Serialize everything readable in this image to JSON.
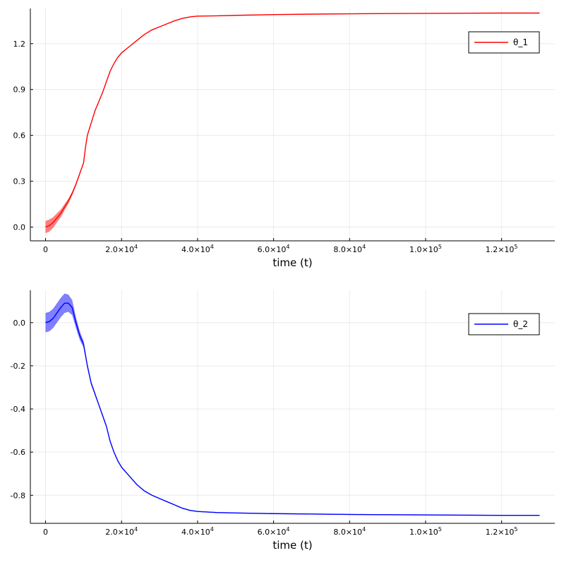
{
  "colors": {
    "series1": "#ff0000",
    "series2": "#0000ff",
    "grid": "#ebebeb",
    "axis": "#000000"
  },
  "chart_data": [
    {
      "type": "line",
      "xlabel": "time (t)",
      "ylabel": "",
      "xlim": [
        -4000,
        134000
      ],
      "ylim": [
        -0.09,
        1.43
      ],
      "grid": true,
      "legend_position": "top-right",
      "xticks": [
        {
          "value": 0,
          "label": "0",
          "mant": "",
          "exp": ""
        },
        {
          "value": 20000,
          "label": "",
          "mant": "2.0×10",
          "exp": "4"
        },
        {
          "value": 40000,
          "label": "",
          "mant": "4.0×10",
          "exp": "4"
        },
        {
          "value": 60000,
          "label": "",
          "mant": "6.0×10",
          "exp": "4"
        },
        {
          "value": 80000,
          "label": "",
          "mant": "8.0×10",
          "exp": "4"
        },
        {
          "value": 100000,
          "label": "",
          "mant": "1.0×10",
          "exp": "5"
        },
        {
          "value": 120000,
          "label": "",
          "mant": "1.2×10",
          "exp": "5"
        }
      ],
      "yticks": [
        {
          "value": 0,
          "label": "0.0"
        },
        {
          "value": 0.3,
          "label": "0.3"
        },
        {
          "value": 0.6,
          "label": "0.6"
        },
        {
          "value": 0.9,
          "label": "0.9"
        },
        {
          "value": 1.2,
          "label": "1.2"
        }
      ],
      "series": [
        {
          "name": "θ_1",
          "color": "#ff0000",
          "band": true,
          "x": [
            0,
            1000,
            2000,
            3000,
            4000,
            5000,
            6000,
            7000,
            8000,
            9000,
            10000,
            10500,
            11000,
            12000,
            13000,
            14000,
            15000,
            16000,
            17000,
            18000,
            19000,
            20000,
            22000,
            24000,
            26000,
            28000,
            30000,
            32000,
            34000,
            36000,
            38000,
            40000,
            45000,
            50000,
            60000,
            70000,
            80000,
            90000,
            100000,
            110000,
            120000,
            130000
          ],
          "y": [
            0.0,
            0.01,
            0.03,
            0.06,
            0.09,
            0.13,
            0.17,
            0.22,
            0.28,
            0.35,
            0.42,
            0.52,
            0.6,
            0.68,
            0.76,
            0.82,
            0.88,
            0.95,
            1.02,
            1.07,
            1.11,
            1.14,
            1.18,
            1.22,
            1.26,
            1.29,
            1.31,
            1.33,
            1.35,
            1.365,
            1.375,
            1.38,
            1.382,
            1.385,
            1.39,
            1.393,
            1.395,
            1.397,
            1.398,
            1.399,
            1.4,
            1.4
          ],
          "band_halfwidth": [
            0.04,
            0.04,
            0.035,
            0.03,
            0.025,
            0.02,
            0.016,
            0.012,
            0.01,
            0.008,
            0.006,
            0.006,
            0.005,
            0.005,
            0.004,
            0.004,
            0.004,
            0.003,
            0.003,
            0.003,
            0.003,
            0.003,
            0.002,
            0.002,
            0.002,
            0.002,
            0.002,
            0.002,
            0.002,
            0.002,
            0.002,
            0.002,
            0.002,
            0.002,
            0.002,
            0.002,
            0.002,
            0.002,
            0.002,
            0.002,
            0.002,
            0.002
          ]
        }
      ]
    },
    {
      "type": "line",
      "xlabel": "time (t)",
      "ylabel": "",
      "xlim": [
        -4000,
        134000
      ],
      "ylim": [
        -0.93,
        0.15
      ],
      "grid": true,
      "legend_position": "top-right",
      "xticks": [
        {
          "value": 0,
          "label": "0",
          "mant": "",
          "exp": ""
        },
        {
          "value": 20000,
          "label": "",
          "mant": "2.0×10",
          "exp": "4"
        },
        {
          "value": 40000,
          "label": "",
          "mant": "4.0×10",
          "exp": "4"
        },
        {
          "value": 60000,
          "label": "",
          "mant": "6.0×10",
          "exp": "4"
        },
        {
          "value": 80000,
          "label": "",
          "mant": "8.0×10",
          "exp": "4"
        },
        {
          "value": 100000,
          "label": "",
          "mant": "1.0×10",
          "exp": "5"
        },
        {
          "value": 120000,
          "label": "",
          "mant": "1.2×10",
          "exp": "5"
        }
      ],
      "yticks": [
        {
          "value": 0,
          "label": "0.0"
        },
        {
          "value": -0.2,
          "label": "-0.2"
        },
        {
          "value": -0.4,
          "label": "-0.4"
        },
        {
          "value": -0.6,
          "label": "-0.6"
        },
        {
          "value": -0.8,
          "label": "-0.8"
        }
      ],
      "series": [
        {
          "name": "θ_2",
          "color": "#0000ff",
          "band": true,
          "x": [
            0,
            1000,
            2000,
            3000,
            4000,
            5000,
            6000,
            7000,
            8000,
            9000,
            10000,
            11000,
            12000,
            13000,
            14000,
            15000,
            16000,
            17000,
            18000,
            19000,
            20000,
            22000,
            24000,
            26000,
            28000,
            30000,
            32000,
            34000,
            36000,
            38000,
            40000,
            45000,
            50000,
            60000,
            70000,
            80000,
            90000,
            100000,
            110000,
            120000,
            130000
          ],
          "y": [
            0.0,
            0.005,
            0.02,
            0.045,
            0.07,
            0.09,
            0.09,
            0.07,
            0.0,
            -0.06,
            -0.1,
            -0.2,
            -0.28,
            -0.33,
            -0.38,
            -0.43,
            -0.48,
            -0.55,
            -0.6,
            -0.64,
            -0.67,
            -0.71,
            -0.75,
            -0.78,
            -0.8,
            -0.815,
            -0.83,
            -0.845,
            -0.86,
            -0.87,
            -0.875,
            -0.88,
            -0.882,
            -0.885,
            -0.887,
            -0.889,
            -0.89,
            -0.891,
            -0.892,
            -0.893,
            -0.893
          ],
          "band_halfwidth": [
            0.045,
            0.045,
            0.045,
            0.045,
            0.045,
            0.045,
            0.04,
            0.035,
            0.025,
            0.02,
            0.015,
            0.01,
            0.008,
            0.006,
            0.005,
            0.005,
            0.004,
            0.004,
            0.003,
            0.003,
            0.003,
            0.003,
            0.002,
            0.002,
            0.002,
            0.002,
            0.002,
            0.002,
            0.002,
            0.002,
            0.002,
            0.002,
            0.002,
            0.002,
            0.002,
            0.002,
            0.002,
            0.002,
            0.002,
            0.002,
            0.002
          ]
        }
      ]
    }
  ]
}
